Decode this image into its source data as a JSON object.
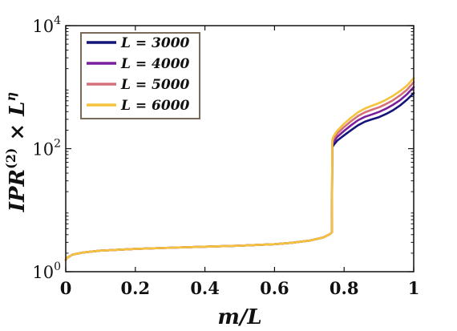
{
  "chart_data": {
    "type": "line",
    "title": "",
    "xlabel": "m/L",
    "ylabel": "IPR^(2) × L^η",
    "xlim": [
      0,
      1
    ],
    "ylim": [
      1,
      10000
    ],
    "yscale": "log",
    "grid": false,
    "legend_position": "top-left",
    "x_ticks": [
      {
        "value": 0,
        "label": "0"
      },
      {
        "value": 0.2,
        "label": "0.2"
      },
      {
        "value": 0.4,
        "label": "0.4"
      },
      {
        "value": 0.6,
        "label": "0.6"
      },
      {
        "value": 0.8,
        "label": "0.8"
      },
      {
        "value": 1,
        "label": "1"
      }
    ],
    "y_ticks": [
      {
        "value": 1,
        "base": "10",
        "exp": "0"
      },
      {
        "value": 100,
        "base": "10",
        "exp": "2"
      },
      {
        "value": 10000,
        "base": "10",
        "exp": "4"
      }
    ],
    "series": [
      {
        "name": "L = 3000",
        "color": "#14147a",
        "x": [
          0,
          0.005,
          0.02,
          0.05,
          0.1,
          0.2,
          0.3,
          0.4,
          0.5,
          0.6,
          0.65,
          0.7,
          0.74,
          0.76,
          0.765,
          0.766,
          0.77,
          0.78,
          0.8,
          0.82,
          0.84,
          0.86,
          0.88,
          0.9,
          0.92,
          0.94,
          0.96,
          0.98,
          1.0
        ],
        "y": [
          1.55,
          1.7,
          1.9,
          2.05,
          2.2,
          2.35,
          2.45,
          2.55,
          2.65,
          2.8,
          2.95,
          3.2,
          3.6,
          4.1,
          4.4,
          105,
          115,
          135,
          165,
          200,
          240,
          275,
          300,
          325,
          365,
          420,
          500,
          620,
          800
        ]
      },
      {
        "name": "L = 4000",
        "color": "#7a1f9e",
        "x": [
          0,
          0.005,
          0.02,
          0.05,
          0.1,
          0.2,
          0.3,
          0.4,
          0.5,
          0.6,
          0.65,
          0.7,
          0.74,
          0.76,
          0.765,
          0.766,
          0.77,
          0.78,
          0.8,
          0.82,
          0.84,
          0.86,
          0.88,
          0.9,
          0.92,
          0.94,
          0.96,
          0.98,
          1.0
        ],
        "y": [
          1.55,
          1.7,
          1.9,
          2.05,
          2.2,
          2.35,
          2.45,
          2.55,
          2.65,
          2.8,
          2.95,
          3.2,
          3.6,
          4.1,
          4.4,
          115,
          130,
          155,
          195,
          240,
          290,
          330,
          360,
          395,
          445,
          515,
          610,
          760,
          1000
        ]
      },
      {
        "name": "L = 5000",
        "color": "#d4707a",
        "x": [
          0,
          0.005,
          0.02,
          0.05,
          0.1,
          0.2,
          0.3,
          0.4,
          0.5,
          0.6,
          0.65,
          0.7,
          0.74,
          0.76,
          0.765,
          0.766,
          0.77,
          0.78,
          0.8,
          0.82,
          0.84,
          0.86,
          0.88,
          0.9,
          0.92,
          0.94,
          0.96,
          0.98,
          1.0
        ],
        "y": [
          1.55,
          1.7,
          1.9,
          2.05,
          2.2,
          2.35,
          2.45,
          2.55,
          2.65,
          2.8,
          2.95,
          3.2,
          3.6,
          4.1,
          4.4,
          125,
          145,
          175,
          225,
          280,
          340,
          390,
          430,
          470,
          530,
          610,
          730,
          900,
          1200
        ]
      },
      {
        "name": "L = 6000",
        "color": "#f5c33b",
        "x": [
          0,
          0.005,
          0.02,
          0.05,
          0.1,
          0.2,
          0.3,
          0.4,
          0.5,
          0.6,
          0.65,
          0.7,
          0.74,
          0.76,
          0.765,
          0.766,
          0.77,
          0.78,
          0.8,
          0.82,
          0.84,
          0.86,
          0.88,
          0.9,
          0.92,
          0.94,
          0.96,
          0.98,
          1.0
        ],
        "y": [
          1.55,
          1.7,
          1.9,
          2.05,
          2.2,
          2.35,
          2.45,
          2.55,
          2.65,
          2.8,
          2.95,
          3.2,
          3.6,
          4.1,
          4.4,
          140,
          160,
          195,
          255,
          320,
          390,
          450,
          500,
          550,
          620,
          720,
          860,
          1050,
          1400
        ]
      }
    ]
  }
}
